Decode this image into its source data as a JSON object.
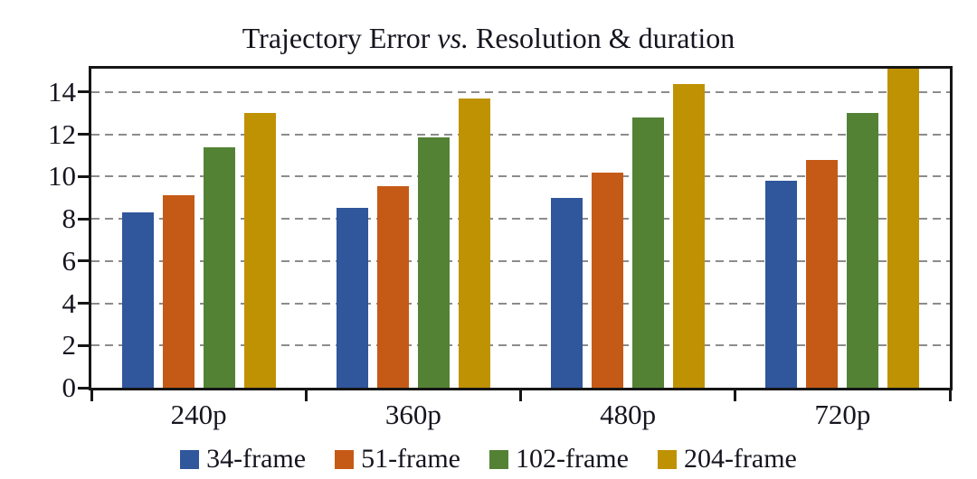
{
  "title": {
    "text_before_italic": "Trajectory Error ",
    "italic_text": "vs.",
    "text_after_italic": " Resolution & duration"
  },
  "chart_data": {
    "type": "bar",
    "title": "Trajectory Error vs. Resolution & duration",
    "categories": [
      "240p",
      "360p",
      "480p",
      "720p"
    ],
    "series": [
      {
        "name": "34-frame",
        "color": "#30569B",
        "values": [
          8.3,
          8.5,
          9.0,
          9.8
        ]
      },
      {
        "name": "51-frame",
        "color": "#C55A16",
        "values": [
          9.1,
          9.55,
          10.2,
          10.8
        ]
      },
      {
        "name": "102-frame",
        "color": "#538235",
        "values": [
          11.4,
          11.85,
          12.8,
          13.0
        ]
      },
      {
        "name": "204-frame",
        "color": "#BF9204",
        "values": [
          13.0,
          13.7,
          14.4,
          15.1
        ]
      }
    ],
    "xlabel": "",
    "ylabel": "",
    "ylim": [
      0,
      15.11
    ],
    "yticks": [
      0,
      2,
      4,
      6,
      8,
      10,
      12,
      14
    ],
    "grid": "horizontal-dashed",
    "legend_position": "bottom",
    "colors": {
      "axis": "#161616",
      "gridline": "#8C8C8C",
      "text": "#15151F",
      "background": "#FFFFFF"
    }
  }
}
